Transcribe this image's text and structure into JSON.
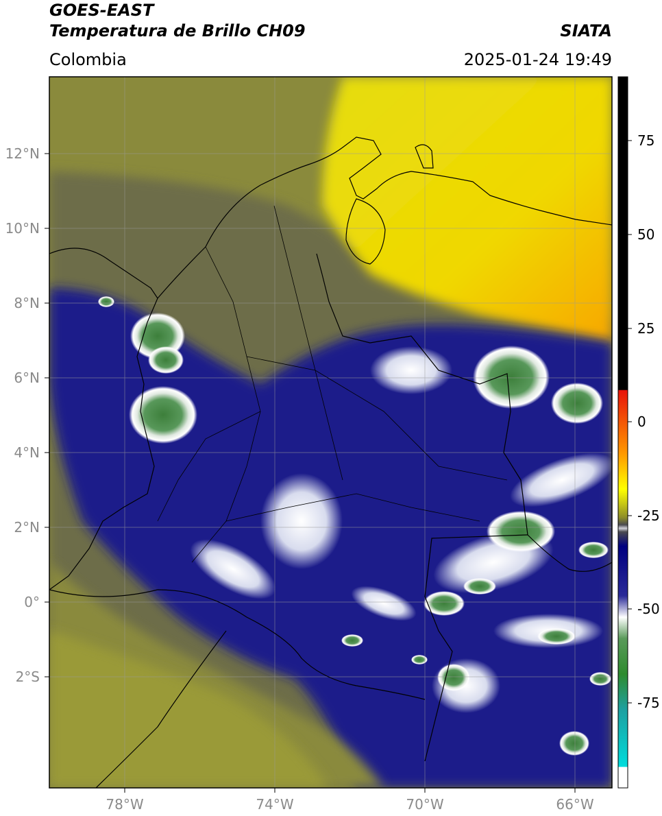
{
  "header": {
    "satellite": "GOES-EAST",
    "product": "Temperatura de Brillo CH09",
    "region": "Colombia",
    "agency": "SIATA",
    "datetime": "2025-01-24 19:49"
  },
  "axes": {
    "lon_labels": [
      "78°W",
      "74°W",
      "70°W",
      "66°W"
    ],
    "lat_labels": [
      "12°N",
      "10°N",
      "8°N",
      "6°N",
      "4°N",
      "2°N",
      "0°",
      "2°S"
    ]
  },
  "colorbar": {
    "labels": [
      "75",
      "50",
      "25",
      "0",
      "-25",
      "-50",
      "-75"
    ],
    "stops": [
      {
        "color": "#000000"
      },
      {
        "color": "#e8140a"
      },
      {
        "color": "#ff9900"
      },
      {
        "color": "#ffff00"
      },
      {
        "color": "#8c8c28"
      },
      {
        "color": "#4a4a50"
      },
      {
        "color": "#000080"
      },
      {
        "color": "#ffffff"
      },
      {
        "color": "#2e8b2e"
      },
      {
        "color": "#00dcdc"
      },
      {
        "color": "#ffffff"
      }
    ]
  },
  "colors": {
    "land_olive": "#8a8a3c",
    "deep_blue": "#1c1f8a",
    "cold_white": "#eef0f4",
    "cold_green": "#4a8a42",
    "warm_yellow": "#e8e010",
    "warm_orange": "#f5b000"
  }
}
